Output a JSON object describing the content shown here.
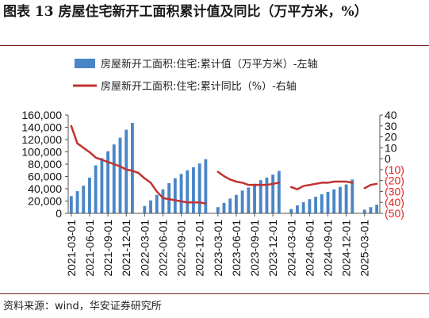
{
  "title": "图表 13  房屋住宅新开工面积累计值及同比（万平方米，%）",
  "source": "资料来源：wind，华安证券研究所",
  "colors": {
    "bar": "#4a86c6",
    "line": "#c0322f",
    "neg_tick": "#e02020",
    "axis": "#555555"
  },
  "chart_data": {
    "type": "bar",
    "series": [
      {
        "name": "房屋新开工面积:住宅:累计值（万平方米）-左轴",
        "type": "bar",
        "axis": "left",
        "values": [
          28000,
          36000,
          45000,
          58000,
          78000,
          90000,
          101000,
          112000,
          123000,
          136000,
          147000,
          null,
          12000,
          21000,
          30000,
          39000,
          49000,
          57000,
          64000,
          70000,
          75000,
          81000,
          88000,
          null,
          10000,
          17000,
          24000,
          30000,
          37000,
          42000,
          48000,
          54000,
          58000,
          63000,
          69000,
          null,
          7000,
          13000,
          18000,
          23000,
          27000,
          31000,
          35000,
          39000,
          43000,
          47000,
          55000,
          null,
          6000,
          10000,
          14000
        ]
      },
      {
        "name": "房屋新开工面积:住宅:累计同比（%）-右轴",
        "type": "line",
        "axis": "right",
        "values": [
          30,
          14,
          10,
          6,
          1,
          -1,
          -3,
          -5,
          -7,
          -10,
          -11,
          -13,
          -18,
          -22,
          -30,
          -36,
          -37,
          -38,
          -39,
          -40,
          -40,
          -40,
          -41,
          null,
          -12,
          -16,
          -19,
          -21,
          -22,
          -24,
          -24,
          -24,
          -24,
          -23,
          -22,
          null,
          -26,
          -28,
          -25,
          -24,
          -23,
          -22,
          -22,
          -21,
          -21,
          -21,
          -22,
          null,
          -27,
          -24,
          -23
        ]
      }
    ],
    "categories": [
      "2021-03",
      "2021-04",
      "2021-05",
      "2021-06",
      "2021-07",
      "2021-08",
      "2021-09",
      "2021-10",
      "2021-11",
      "2021-12",
      "2022-01",
      "2022-02",
      "2022-03",
      "2022-04",
      "2022-05",
      "2022-06",
      "2022-07",
      "2022-08",
      "2022-09",
      "2022-10",
      "2022-11",
      "2022-12",
      "2023-01",
      "2023-02",
      "2023-03",
      "2023-04",
      "2023-05",
      "2023-06",
      "2023-07",
      "2023-08",
      "2023-09",
      "2023-10",
      "2023-11",
      "2023-12",
      "2024-01",
      "2024-02",
      "2024-03",
      "2024-04",
      "2024-05",
      "2024-06",
      "2024-07",
      "2024-08",
      "2024-09",
      "2024-10",
      "2024-11",
      "2024-12",
      "2025-01",
      "2025-02",
      "2025-03",
      "2025-04",
      "2025-05"
    ],
    "x_tick_labels": [
      "2021-03-01",
      "2021-06-01",
      "2021-09-01",
      "2021-12-01",
      "2022-03-01",
      "2022-06-01",
      "2022-09-01",
      "2022-12-01",
      "2023-03-01",
      "2023-06-01",
      "2023-09-01",
      "2023-12-01",
      "2024-03-01",
      "2024-06-01",
      "2024-09-01",
      "2024-12-01",
      "2025-03-01"
    ],
    "left_axis": {
      "min": 0,
      "max": 160000,
      "ticks": [
        0,
        20000,
        40000,
        60000,
        80000,
        100000,
        120000,
        140000,
        160000
      ],
      "tick_labels": [
        "0",
        "20,000",
        "40,000",
        "60,000",
        "80,000",
        "100,000",
        "120,000",
        "140,000",
        "160,000"
      ]
    },
    "right_axis": {
      "min": -50,
      "max": 40,
      "ticks": [
        40,
        30,
        20,
        10,
        0,
        -10,
        -20,
        -30,
        -40,
        -50
      ],
      "tick_labels": [
        "40",
        "30",
        "20",
        "10",
        "0",
        "(10)",
        "(20)",
        "(30)",
        "(40)",
        "(50)"
      ]
    },
    "legend_position": "top",
    "grid": false
  }
}
